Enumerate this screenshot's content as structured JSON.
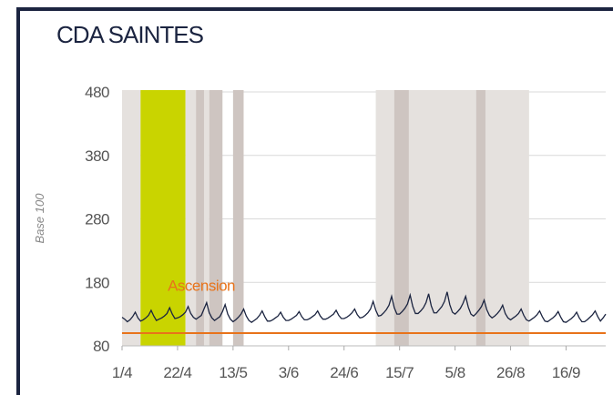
{
  "chart_data": {
    "type": "line",
    "title": "CDA SAINTES",
    "ylabel": "Base 100",
    "xlim": [
      0,
      183
    ],
    "ylim": [
      80,
      480
    ],
    "yticks": [
      80,
      180,
      280,
      380,
      480
    ],
    "xticks": [
      {
        "value": 0,
        "label": "1/4"
      },
      {
        "value": 21,
        "label": "22/4"
      },
      {
        "value": 42,
        "label": "13/5"
      },
      {
        "value": 63,
        "label": "3/6"
      },
      {
        "value": 84,
        "label": "24/6"
      },
      {
        "value": 105,
        "label": "15/7"
      },
      {
        "value": 126,
        "label": "5/8"
      },
      {
        "value": 147,
        "label": "26/8"
      },
      {
        "value": 168,
        "label": "16/9"
      }
    ],
    "grid": true,
    "bands": [
      {
        "start": 0,
        "end": 7,
        "color": "#e5e1de"
      },
      {
        "start": 7,
        "end": 24,
        "color": "#c9d400"
      },
      {
        "start": 24,
        "end": 33,
        "color": "#e5e1de"
      },
      {
        "start": 28,
        "end": 31,
        "color": "#cec5c1"
      },
      {
        "start": 33,
        "end": 38,
        "color": "#cec5c1"
      },
      {
        "start": 42,
        "end": 46,
        "color": "#cec5c1"
      },
      {
        "start": 96,
        "end": 154,
        "color": "#e5e1de"
      },
      {
        "start": 103,
        "end": 108.5,
        "color": "#cec5c1"
      },
      {
        "start": 134,
        "end": 137.5,
        "color": "#cec5c1"
      }
    ],
    "reference_line": {
      "value": 100,
      "color": "#e8731a"
    },
    "annotations": [
      {
        "text": "Ascension",
        "x": 30,
        "y": 175,
        "color": "#e8731a"
      }
    ],
    "series": [
      {
        "name": null,
        "color": "#1b2440",
        "x": [
          0,
          1,
          2,
          3,
          4,
          5,
          6,
          7,
          8,
          9,
          10,
          11,
          12,
          13,
          14,
          15,
          16,
          17,
          18,
          19,
          20,
          21,
          22,
          23,
          24,
          25,
          26,
          27,
          28,
          29,
          30,
          31,
          32,
          33,
          34,
          35,
          36,
          37,
          38,
          39,
          40,
          41,
          42,
          43,
          44,
          45,
          46,
          47,
          48,
          49,
          50,
          51,
          52,
          53,
          54,
          55,
          56,
          57,
          58,
          59,
          60,
          61,
          62,
          63,
          64,
          65,
          66,
          67,
          68,
          69,
          70,
          71,
          72,
          73,
          74,
          75,
          76,
          77,
          78,
          79,
          80,
          81,
          82,
          83,
          84,
          85,
          86,
          87,
          88,
          89,
          90,
          91,
          92,
          93,
          94,
          95,
          96,
          97,
          98,
          99,
          100,
          101,
          102,
          103,
          104,
          105,
          106,
          107,
          108,
          109,
          110,
          111,
          112,
          113,
          114,
          115,
          116,
          117,
          118,
          119,
          120,
          121,
          122,
          123,
          124,
          125,
          126,
          127,
          128,
          129,
          130,
          131,
          132,
          133,
          134,
          135,
          136,
          137,
          138,
          139,
          140,
          141,
          142,
          143,
          144,
          145,
          146,
          147,
          148,
          149,
          150,
          151,
          152,
          153,
          154,
          155,
          156,
          157,
          158,
          159,
          160,
          161,
          162,
          163,
          164,
          165,
          166,
          167,
          168,
          169,
          170,
          171,
          172,
          173,
          174,
          175,
          176,
          177,
          178,
          179,
          180,
          181,
          182,
          183
        ],
        "values": [
          125,
          122,
          118,
          121,
          126,
          133,
          124,
          119,
          121,
          124,
          128,
          136,
          127,
          120,
          122,
          124,
          127,
          131,
          140,
          130,
          123,
          124,
          126,
          129,
          133,
          142,
          131,
          125,
          122,
          125,
          128,
          138,
          148,
          132,
          124,
          120,
          123,
          126,
          134,
          145,
          130,
          122,
          118,
          121,
          125,
          130,
          138,
          127,
          120,
          117,
          120,
          123,
          128,
          135,
          126,
          119,
          119,
          121,
          124,
          127,
          133,
          125,
          120,
          120,
          122,
          125,
          128,
          134,
          126,
          121,
          121,
          123,
          126,
          129,
          135,
          127,
          122,
          122,
          124,
          127,
          130,
          136,
          128,
          123,
          123,
          125,
          128,
          132,
          138,
          129,
          124,
          125,
          128,
          132,
          138,
          150,
          136,
          127,
          128,
          132,
          137,
          144,
          158,
          140,
          130,
          130,
          134,
          139,
          146,
          160,
          142,
          131,
          131,
          135,
          140,
          148,
          162,
          143,
          132,
          132,
          137,
          142,
          150,
          165,
          145,
          133,
          130,
          134,
          139,
          147,
          158,
          141,
          130,
          127,
          131,
          136,
          142,
          152,
          137,
          128,
          124,
          127,
          131,
          136,
          144,
          131,
          124,
          121,
          124,
          127,
          131,
          138,
          128,
          121,
          119,
          122,
          125,
          129,
          135,
          126,
          119,
          118,
          121,
          124,
          128,
          134,
          125,
          118,
          117,
          120,
          123,
          127,
          133,
          124,
          118,
          118,
          121,
          125,
          129,
          135,
          126,
          119,
          124,
          130
        ]
      }
    ]
  }
}
